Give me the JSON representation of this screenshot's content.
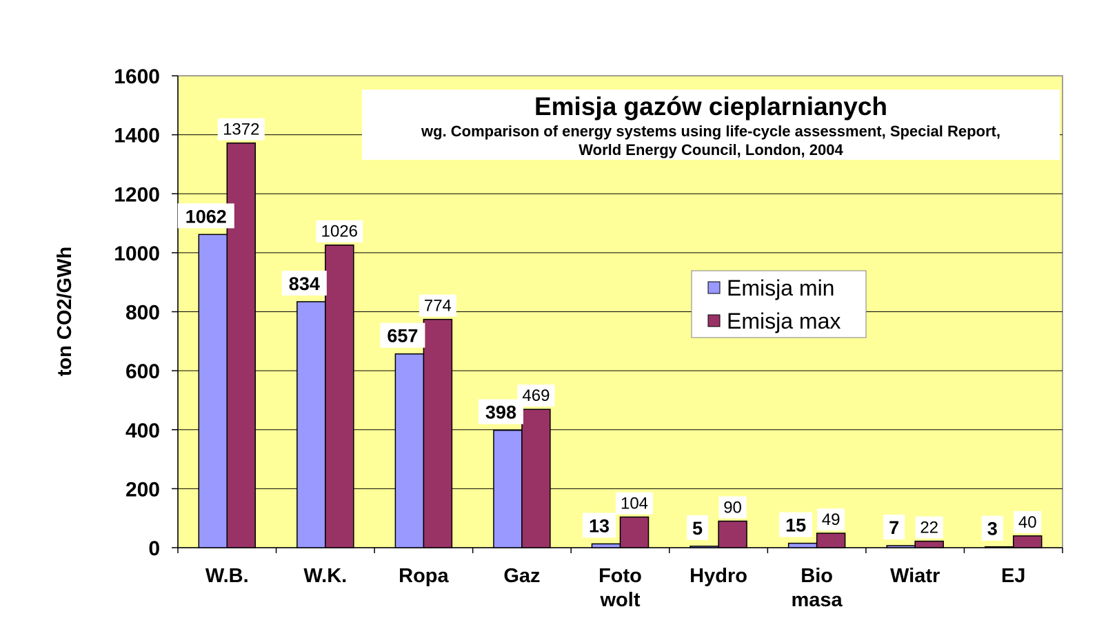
{
  "chart_data": {
    "type": "bar",
    "title": "Emisja gazów cieplarnianych",
    "subtitle_line1": "wg. Comparison of energy systems using life-cycle assessment, Special Report,",
    "subtitle_line2": "World Energy Council, London, 2004",
    "ylabel": "ton CO2/GWh",
    "xlabel": "",
    "ylim": [
      0,
      1600
    ],
    "yticks": [
      0,
      200,
      400,
      600,
      800,
      1000,
      1200,
      1400,
      1600
    ],
    "grid": true,
    "legend_position": "center-right",
    "categories": [
      [
        "W.B."
      ],
      [
        "W.K."
      ],
      [
        "Ropa"
      ],
      [
        "Gaz"
      ],
      [
        "Foto",
        "wolt"
      ],
      [
        "Hydro"
      ],
      [
        "Bio",
        "masa"
      ],
      [
        "Wiatr"
      ],
      [
        "EJ"
      ]
    ],
    "series": [
      {
        "name": "Emisja min",
        "color": "#9999ff",
        "values": [
          1062,
          834,
          657,
          398,
          13,
          5,
          15,
          7,
          3
        ]
      },
      {
        "name": "Emisja max",
        "color": "#993366",
        "values": [
          1372,
          1026,
          774,
          469,
          104,
          90,
          49,
          22,
          40
        ]
      }
    ],
    "plot_background": "#ffff99"
  }
}
